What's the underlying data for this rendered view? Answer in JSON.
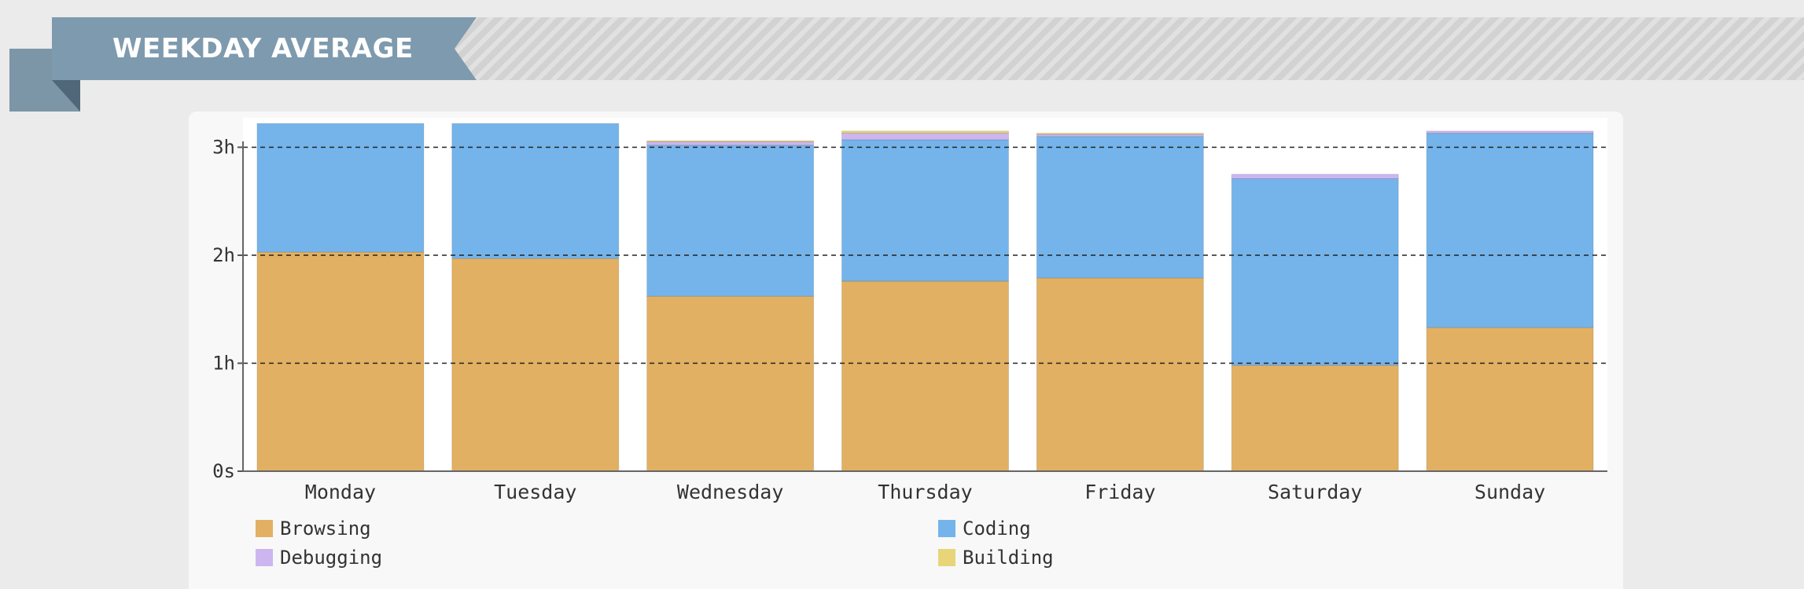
{
  "section": {
    "title": "WEEKDAY AVERAGE"
  },
  "chart_data": {
    "type": "bar",
    "stacked": true,
    "title": "",
    "xlabel": "",
    "ylabel": "",
    "categories": [
      "Monday",
      "Tuesday",
      "Wednesday",
      "Thursday",
      "Friday",
      "Saturday",
      "Sunday"
    ],
    "y_unit": "hours",
    "ylim": [
      0,
      3
    ],
    "yticks": [
      0,
      1,
      2,
      3
    ],
    "ytick_labels": [
      "0s",
      "1h",
      "2h",
      "3h"
    ],
    "grid": "horizontal dashed",
    "legend_position": "bottom",
    "series": [
      {
        "name": "Browsing",
        "color": "#e2b063",
        "values": [
          2.03,
          1.97,
          1.62,
          1.76,
          1.79,
          0.98,
          1.33
        ]
      },
      {
        "name": "Coding",
        "color": "#74b4eb",
        "values": [
          1.19,
          1.25,
          1.4,
          1.31,
          1.31,
          1.73,
          1.8
        ]
      },
      {
        "name": "Debugging",
        "color": "#cdb6f0",
        "values": [
          0.0,
          0.0,
          0.03,
          0.06,
          0.02,
          0.04,
          0.02
        ]
      },
      {
        "name": "Building",
        "color": "#e8d57a",
        "values": [
          0.0,
          0.0,
          0.01,
          0.02,
          0.01,
          0.0,
          0.0
        ]
      }
    ]
  }
}
